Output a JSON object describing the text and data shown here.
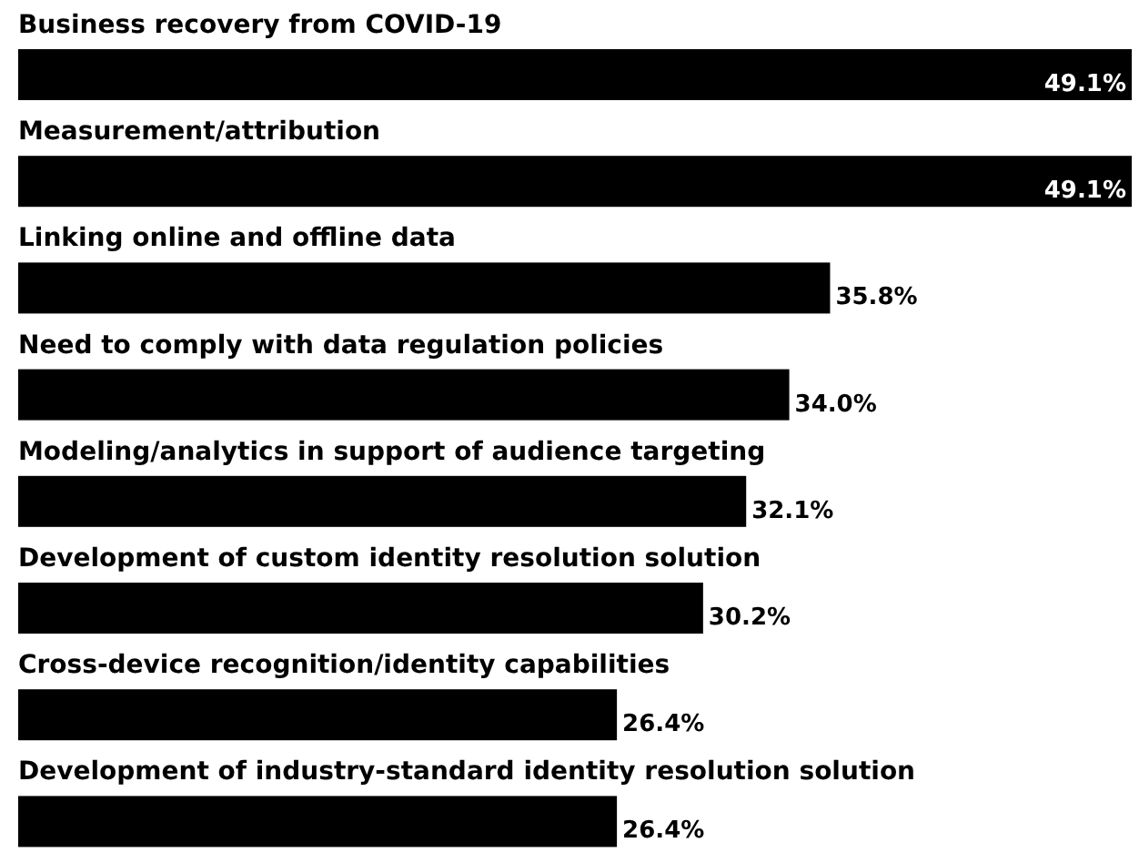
{
  "chart_data": {
    "type": "bar",
    "orientation": "horizontal",
    "categories": [
      "Business recovery from COVID-19",
      "Measurement/attribution",
      "Linking online and offline data",
      "Need to comply with data regulation policies",
      "Modeling/analytics in support of audience targeting",
      "Development of custom identity resolution solution",
      "Cross-device recognition/identity capabilities",
      "Development of industry-standard identity resolution solution"
    ],
    "values": [
      49.1,
      49.1,
      35.8,
      34.0,
      32.1,
      30.2,
      26.4,
      26.4
    ],
    "value_labels": [
      "49.1%",
      "49.1%",
      "35.8%",
      "34.0%",
      "32.1%",
      "30.2%",
      "26.4%",
      "26.4%"
    ],
    "color": "#000000"
  }
}
